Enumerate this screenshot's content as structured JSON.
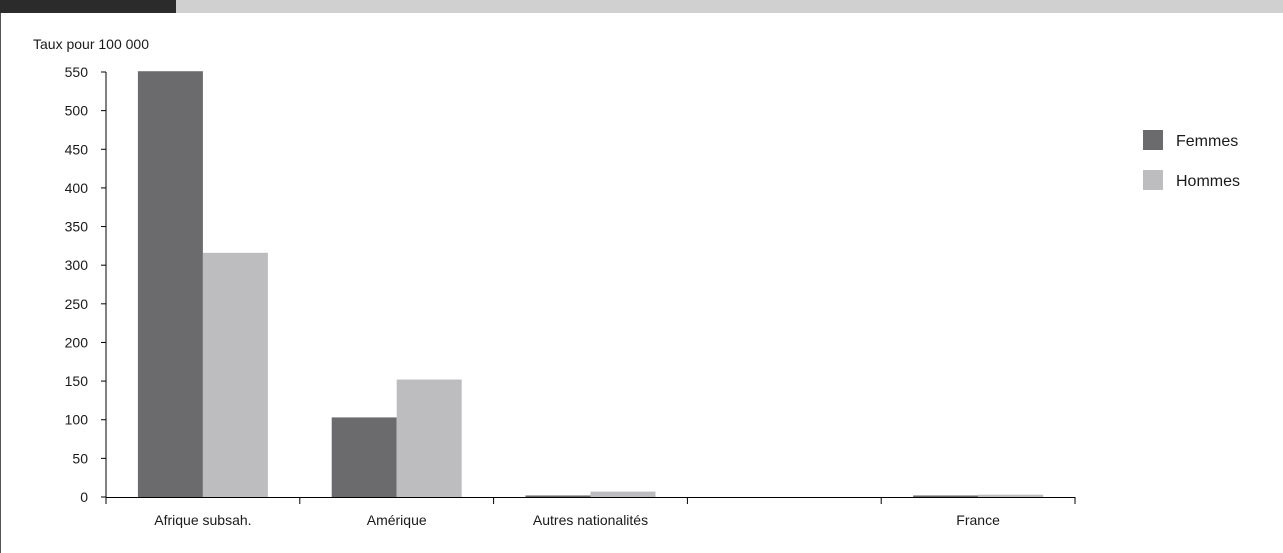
{
  "chart_data": {
    "type": "bar",
    "ylabel": "Taux pour 100 000",
    "ylim": [
      0,
      550
    ],
    "yticks": [
      0,
      50,
      100,
      150,
      200,
      250,
      300,
      350,
      400,
      450,
      500,
      550
    ],
    "categories": [
      "Afrique subsah.",
      "Amérique",
      "Autres nationalités",
      "",
      "France"
    ],
    "series": [
      {
        "name": "Femmes",
        "color": "#6b6b6d",
        "values": [
          551,
          103,
          2,
          0,
          2
        ]
      },
      {
        "name": "Hommes",
        "color": "#bdbdbf",
        "values": [
          316,
          152,
          7,
          0,
          3
        ]
      }
    ],
    "legend_position": "right",
    "grid": false
  }
}
